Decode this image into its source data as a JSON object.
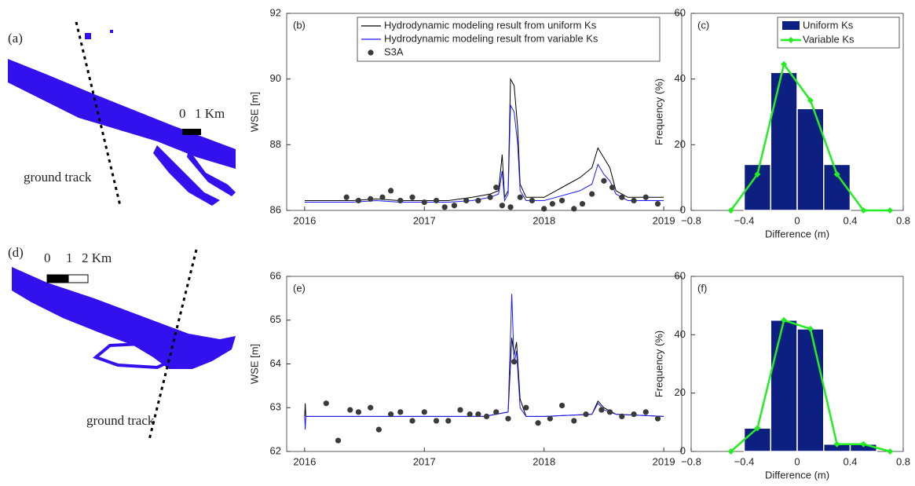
{
  "maps": [
    {
      "panel_label": "(a)",
      "scale_labels": [
        "0",
        "1 Km"
      ],
      "annotation": "ground track"
    },
    {
      "panel_label": "(d)",
      "scale_labels": [
        "0",
        "1",
        "2 Km"
      ],
      "annotation": "ground track"
    }
  ],
  "chart_data": [
    {
      "type": "line",
      "panel_label": "(b)",
      "y_label": "WSE [m]",
      "xlim": [
        2015.85,
        2019.15
      ],
      "xticks": [
        2016,
        2017,
        2018,
        2019
      ],
      "ylim": [
        86,
        92
      ],
      "yticks": [
        86,
        88,
        90,
        92
      ],
      "legend": "upper right",
      "series": [
        {
          "name": "Hydrodynamic modeling result from uniform Ks",
          "color": "#000000",
          "style": "line",
          "x": [
            2016.0,
            2016.2,
            2016.4,
            2016.6,
            2016.8,
            2017.0,
            2017.2,
            2017.4,
            2017.55,
            2017.62,
            2017.65,
            2017.67,
            2017.7,
            2017.72,
            2017.75,
            2017.78,
            2017.8,
            2017.85,
            2018.0,
            2018.1,
            2018.2,
            2018.3,
            2018.4,
            2018.45,
            2018.5,
            2018.55,
            2018.6,
            2018.7,
            2018.8,
            2019.0
          ],
          "values": [
            86.3,
            86.3,
            86.3,
            86.35,
            86.3,
            86.3,
            86.3,
            86.4,
            86.5,
            86.6,
            87.7,
            86.4,
            86.6,
            90.0,
            89.8,
            88.5,
            86.8,
            86.4,
            86.4,
            86.6,
            86.8,
            87.0,
            87.3,
            87.9,
            87.6,
            87.3,
            86.6,
            86.4,
            86.4,
            86.4
          ]
        },
        {
          "name": "Hydrodynamic modeling result from variable Ks",
          "color": "#1a1aff",
          "style": "line",
          "x": [
            2016.0,
            2016.2,
            2016.4,
            2016.6,
            2016.8,
            2017.0,
            2017.2,
            2017.4,
            2017.55,
            2017.62,
            2017.65,
            2017.67,
            2017.7,
            2017.72,
            2017.75,
            2017.78,
            2017.8,
            2017.85,
            2018.0,
            2018.1,
            2018.2,
            2018.3,
            2018.4,
            2018.45,
            2018.5,
            2018.55,
            2018.6,
            2018.7,
            2018.8,
            2019.0
          ],
          "values": [
            86.25,
            86.25,
            86.25,
            86.3,
            86.25,
            86.25,
            86.25,
            86.3,
            86.4,
            86.5,
            87.2,
            86.3,
            86.5,
            89.2,
            89.0,
            88.0,
            86.6,
            86.3,
            86.3,
            86.4,
            86.5,
            86.6,
            86.8,
            87.4,
            87.1,
            86.9,
            86.5,
            86.3,
            86.3,
            86.3
          ]
        },
        {
          "name": "S3A",
          "color": "#3a3a3a",
          "style": "markers",
          "x": [
            2016.35,
            2016.45,
            2016.55,
            2016.65,
            2016.72,
            2016.8,
            2016.9,
            2017.0,
            2017.1,
            2017.17,
            2017.25,
            2017.35,
            2017.45,
            2017.55,
            2017.6,
            2017.65,
            2017.72,
            2017.8,
            2017.9,
            2018.0,
            2018.07,
            2018.15,
            2018.25,
            2018.32,
            2018.4,
            2018.5,
            2018.57,
            2018.65,
            2018.75,
            2018.85,
            2018.95
          ],
          "values": [
            86.4,
            86.3,
            86.35,
            86.4,
            86.6,
            86.3,
            86.4,
            86.25,
            86.3,
            86.1,
            86.15,
            86.3,
            86.3,
            86.4,
            86.7,
            86.15,
            86.1,
            86.4,
            86.3,
            86.05,
            86.2,
            86.3,
            86.05,
            86.2,
            86.5,
            86.9,
            86.7,
            86.4,
            86.3,
            86.4,
            86.2
          ]
        }
      ]
    },
    {
      "type": "histogram",
      "panel_label": "(c)",
      "y_label": "Frequency (%)",
      "x_label": "Difference (m)",
      "xlim": [
        -0.8,
        0.8
      ],
      "xticks": [
        {
          "value": -0.8,
          "label": "−0.8"
        },
        {
          "value": -0.4,
          "label": "−0.4"
        },
        0,
        0.4,
        0.8
      ],
      "ylim": [
        0,
        60
      ],
      "yticks": [
        0,
        20,
        40,
        60
      ],
      "legend": "upper right",
      "bins": [
        -0.4,
        -0.2,
        0,
        0.2,
        0.4
      ],
      "bars": {
        "name": "Uniform Ks",
        "color": "#0d1f80",
        "values": [
          14,
          42,
          31,
          14
        ]
      },
      "line": {
        "name": "Variable Ks",
        "color": "#22ee22",
        "x": [
          -0.5,
          -0.3,
          -0.1,
          0.1,
          0.3,
          0.5,
          0.7
        ],
        "values": [
          0,
          11,
          44.5,
          33.5,
          11,
          0,
          0
        ]
      }
    },
    {
      "type": "line",
      "panel_label": "(e)",
      "y_label": "WSE [m]",
      "xlim": [
        2015.85,
        2019.15
      ],
      "xticks": [
        2016,
        2017,
        2018,
        2019
      ],
      "ylim": [
        62,
        66
      ],
      "yticks": [
        62,
        63,
        64,
        65,
        66
      ],
      "series": [
        {
          "color": "#000000",
          "style": "line",
          "x": [
            2016.0,
            2016.005,
            2016.01,
            2016.5,
            2017.0,
            2017.5,
            2017.7,
            2017.73,
            2017.75,
            2017.77,
            2017.8,
            2017.85,
            2018.0,
            2018.4,
            2018.45,
            2018.5,
            2018.6,
            2019.0
          ],
          "values": [
            62.8,
            63.1,
            62.8,
            62.8,
            62.8,
            62.8,
            62.9,
            64.6,
            64.2,
            64.5,
            63.2,
            62.8,
            62.8,
            62.85,
            63.15,
            63.0,
            62.85,
            62.8
          ]
        },
        {
          "color": "#1a1aff",
          "style": "line",
          "x": [
            2016.0,
            2016.005,
            2016.01,
            2016.5,
            2017.0,
            2017.5,
            2017.7,
            2017.73,
            2017.75,
            2017.77,
            2017.8,
            2017.85,
            2018.0,
            2018.4,
            2018.45,
            2018.5,
            2018.6,
            2019.0
          ],
          "values": [
            62.8,
            62.5,
            62.8,
            62.8,
            62.8,
            62.8,
            62.9,
            65.6,
            64.0,
            64.3,
            63.0,
            62.8,
            62.8,
            62.85,
            63.1,
            62.95,
            62.85,
            62.8
          ]
        },
        {
          "color": "#3a3a3a",
          "style": "markers",
          "x": [
            2016.18,
            2016.28,
            2016.38,
            2016.45,
            2016.55,
            2016.62,
            2016.72,
            2016.8,
            2016.9,
            2017.0,
            2017.1,
            2017.2,
            2017.3,
            2017.38,
            2017.45,
            2017.52,
            2017.6,
            2017.7,
            2017.75,
            2017.85,
            2017.95,
            2018.05,
            2018.15,
            2018.25,
            2018.35,
            2018.48,
            2018.55,
            2018.65,
            2018.75,
            2018.85,
            2018.95
          ],
          "values": [
            63.1,
            62.25,
            62.95,
            62.9,
            63.0,
            62.5,
            62.85,
            62.9,
            62.7,
            62.9,
            62.7,
            62.7,
            62.95,
            62.85,
            62.85,
            62.8,
            62.9,
            62.75,
            64.05,
            63.0,
            62.65,
            62.75,
            63.05,
            62.7,
            62.85,
            62.95,
            62.9,
            62.8,
            62.85,
            62.9,
            62.75
          ]
        }
      ]
    },
    {
      "type": "histogram",
      "panel_label": "(f)",
      "y_label": "Frequency (%)",
      "x_label": "Difference (m)",
      "xlim": [
        -0.8,
        0.8
      ],
      "xticks": [
        {
          "value": -0.8,
          "label": "−0.8"
        },
        {
          "value": -0.4,
          "label": "−0.4"
        },
        0,
        0.4,
        0.8
      ],
      "ylim": [
        0,
        60
      ],
      "yticks": [
        0,
        20,
        40,
        60
      ],
      "bins": [
        -0.4,
        -0.2,
        0,
        0.2,
        0.4,
        0.6
      ],
      "bars": {
        "color": "#0d1f80",
        "values": [
          8,
          45,
          42,
          2.5,
          2.5
        ]
      },
      "line": {
        "color": "#22ee22",
        "x": [
          -0.5,
          -0.3,
          -0.1,
          0.1,
          0.3,
          0.5,
          0.7
        ],
        "values": [
          0,
          8,
          45,
          42,
          2.5,
          2.5,
          0
        ]
      }
    }
  ]
}
